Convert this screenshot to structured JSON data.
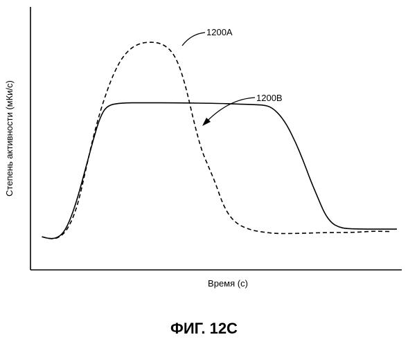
{
  "figure_caption": "ФИГ. 12C",
  "chart_data": {
    "type": "line",
    "xlabel": "Время (с)",
    "ylabel": "Степень активности (мКи/с)",
    "grid": false,
    "xlim": [
      0,
      100
    ],
    "ylim": [
      0,
      100
    ],
    "series": [
      {
        "name": "1200A",
        "style": "dashed",
        "x": [
          2,
          4,
          6,
          8,
          10,
          12,
          14,
          16,
          18,
          20,
          22,
          24,
          26,
          28,
          30,
          32,
          34,
          36,
          38,
          40,
          42,
          44,
          46,
          48,
          50,
          52,
          54,
          56,
          58,
          60,
          62,
          64,
          66,
          68,
          70,
          74,
          78,
          82,
          86,
          90,
          94,
          98
        ],
        "y": [
          13.5,
          12.7,
          12.7,
          14.5,
          19,
          27,
          40,
          53,
          64,
          73,
          80.5,
          86,
          89.5,
          91.5,
          92.5,
          92.7,
          92.5,
          91.3,
          88.7,
          83,
          73,
          60,
          49,
          42,
          35,
          26.5,
          21.5,
          18.7,
          17.2,
          16.2,
          15.6,
          15.2,
          14.9,
          14.8,
          14.8,
          14.9,
          15.1,
          15.2,
          15.2,
          15.4,
          15.8,
          15.6
        ]
      },
      {
        "name": "1200B",
        "style": "solid",
        "x": [
          2,
          4,
          6,
          8,
          10,
          12,
          14,
          16,
          18,
          20,
          24,
          30,
          40,
          50,
          56,
          60,
          64,
          66,
          68,
          70,
          72,
          74,
          76,
          78,
          80,
          82,
          84,
          86,
          90,
          94,
          98,
          100
        ],
        "y": [
          13.5,
          12.7,
          12.9,
          15,
          21,
          30,
          41,
          52,
          62,
          67,
          68,
          68,
          68,
          67.8,
          67.5,
          67.3,
          67,
          65.5,
          62.5,
          58,
          52,
          45,
          37,
          30,
          23,
          19,
          17.4,
          16.8,
          16.6,
          16.6,
          16.6,
          16.6
        ]
      }
    ]
  }
}
